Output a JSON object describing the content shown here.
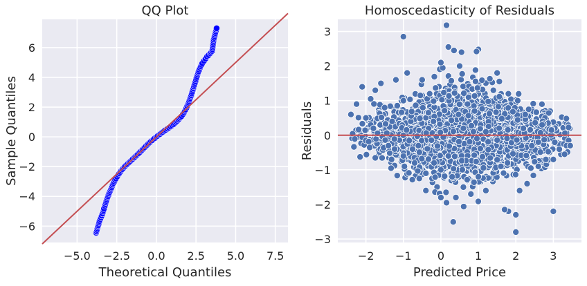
{
  "chart_data": [
    {
      "type": "scatter",
      "title": "QQ Plot",
      "xlabel": "Theoretical Quantiles",
      "ylabel": "Sample Quantiles",
      "xlim": [
        -7.2,
        8.3
      ],
      "ylim": [
        -7.1,
        7.9
      ],
      "xticks": [
        -5.0,
        -2.5,
        0.0,
        2.5,
        5.0,
        7.5
      ],
      "xtick_labels": [
        "−5.0",
        "−2.5",
        "0.0",
        "2.5",
        "5.0",
        "7.5"
      ],
      "yticks": [
        -6,
        -4,
        -2,
        0,
        2,
        4,
        6
      ],
      "ytick_labels": [
        "−6",
        "−4",
        "−2",
        "0",
        "2",
        "4",
        "6"
      ],
      "grid": true,
      "reference_line": {
        "slope": 1,
        "intercept": 0
      },
      "series": [
        {
          "points": [
            [
              -3.8,
              -6.45
            ],
            [
              -3.58,
              -5.65
            ],
            [
              -3.45,
              -5.3
            ],
            [
              -3.35,
              -5.02
            ],
            [
              -3.3,
              -4.82
            ],
            [
              -3.25,
              -4.65
            ],
            [
              -3.18,
              -4.4
            ],
            [
              -3.12,
              -4.2
            ],
            [
              -3.05,
              -4.0
            ],
            [
              -2.98,
              -3.8
            ],
            [
              -2.9,
              -3.6
            ],
            [
              -2.82,
              -3.4
            ],
            [
              -2.75,
              -3.2
            ],
            [
              -2.65,
              -3.0
            ],
            [
              -2.55,
              -2.8
            ],
            [
              -2.4,
              -2.55
            ],
            [
              -2.2,
              -2.25
            ],
            [
              -2.0,
              -2.0
            ],
            [
              -1.7,
              -1.7
            ],
            [
              -1.4,
              -1.4
            ],
            [
              -1.1,
              -1.1
            ],
            [
              -0.8,
              -0.78
            ],
            [
              -0.5,
              -0.45
            ],
            [
              -0.25,
              -0.22
            ],
            [
              0.0,
              0.0
            ],
            [
              0.25,
              0.2
            ],
            [
              0.5,
              0.4
            ],
            [
              0.8,
              0.62
            ],
            [
              1.1,
              0.85
            ],
            [
              1.4,
              1.15
            ],
            [
              1.6,
              1.4
            ],
            [
              1.75,
              1.65
            ],
            [
              1.9,
              1.95
            ],
            [
              2.0,
              2.2
            ],
            [
              2.1,
              2.5
            ],
            [
              2.2,
              2.8
            ],
            [
              2.3,
              3.15
            ],
            [
              2.4,
              3.5
            ],
            [
              2.5,
              3.85
            ],
            [
              2.6,
              4.2
            ],
            [
              2.7,
              4.5
            ],
            [
              2.8,
              4.75
            ],
            [
              2.9,
              4.95
            ],
            [
              3.0,
              5.1
            ],
            [
              3.1,
              5.25
            ],
            [
              3.2,
              5.4
            ],
            [
              3.3,
              5.5
            ],
            [
              3.4,
              5.62
            ],
            [
              3.52,
              5.78
            ],
            [
              3.62,
              6.55
            ],
            [
              3.8,
              7.3
            ]
          ]
        }
      ]
    },
    {
      "type": "scatter",
      "title": "Homoscedasticity of Residuals",
      "xlabel": "Predicted Price",
      "ylabel": "Residuals",
      "xlim": [
        -2.75,
        3.75
      ],
      "ylim": [
        -3.1,
        3.35
      ],
      "xticks": [
        -2,
        -1,
        0,
        1,
        2,
        3
      ],
      "xtick_labels": [
        "−2",
        "−1",
        "0",
        "1",
        "2",
        "3"
      ],
      "yticks": [
        -3,
        -2,
        -1,
        0,
        1,
        2,
        3
      ],
      "ytick_labels": [
        "−3",
        "−2",
        "−1",
        "0",
        "1",
        "2",
        "3"
      ],
      "grid": true,
      "reference_line": {
        "y": 0
      },
      "series": [
        {
          "points": [
            [
              0.15,
              3.18
            ],
            [
              -1.0,
              2.85
            ],
            [
              1.0,
              2.48
            ],
            [
              0.95,
              2.42
            ],
            [
              0.35,
              2.45
            ],
            [
              0.55,
              2.4
            ],
            [
              0.2,
              2.55
            ],
            [
              -0.9,
              1.8
            ],
            [
              -1.2,
              1.6
            ],
            [
              -1.6,
              1.5
            ],
            [
              -1.75,
              1.3
            ],
            [
              -2.1,
              1.4
            ],
            [
              -2.4,
              0.6
            ],
            [
              -2.25,
              0.9
            ],
            [
              2.05,
              1.0
            ],
            [
              2.25,
              0.6
            ],
            [
              2.7,
              0.3
            ],
            [
              2.95,
              0.15
            ],
            [
              3.35,
              -0.3
            ],
            [
              3.45,
              -0.3
            ],
            [
              3.3,
              -0.55
            ],
            [
              3.0,
              -0.7
            ],
            [
              2.8,
              -0.7
            ],
            [
              2.6,
              -0.9
            ],
            [
              2.4,
              -0.95
            ],
            [
              2.3,
              -1.4
            ],
            [
              2.1,
              -1.6
            ],
            [
              3.0,
              -2.2
            ],
            [
              2.0,
              -2.3
            ],
            [
              1.8,
              -2.2
            ],
            [
              1.7,
              -2.15
            ],
            [
              2.0,
              -2.8
            ],
            [
              1.2,
              -1.6
            ],
            [
              0.8,
              -1.7
            ],
            [
              0.6,
              -1.5
            ],
            [
              0.4,
              -1.8
            ],
            [
              0.15,
              -1.95
            ],
            [
              0.0,
              -1.8
            ],
            [
              -0.4,
              -1.1
            ],
            [
              -0.7,
              -0.8
            ],
            [
              -1.0,
              -0.6
            ],
            [
              -1.4,
              -0.3
            ],
            [
              -1.8,
              0.2
            ],
            [
              -2.0,
              0.5
            ],
            [
              -1.5,
              0.8
            ],
            [
              -1.0,
              1.0
            ],
            [
              -0.5,
              1.6
            ],
            [
              0.0,
              2.1
            ],
            [
              0.5,
              2.0
            ],
            [
              1.5,
              1.8
            ],
            [
              1.8,
              1.2
            ],
            [
              2.2,
              0.2
            ],
            [
              2.6,
              -0.2
            ],
            [
              1.0,
              -1.2
            ],
            [
              0.2,
              -0.6
            ],
            [
              -0.2,
              0.4
            ],
            [
              0.6,
              0.2
            ],
            [
              1.2,
              0.1
            ],
            [
              -0.6,
              -0.3
            ],
            [
              0.9,
              0.7
            ],
            [
              -1.3,
              0.4
            ],
            [
              1.6,
              -0.9
            ],
            [
              -0.3,
              1.2
            ],
            [
              0.3,
              -1.2
            ],
            [
              1.4,
              1.3
            ]
          ],
          "cloud_center": [
            0.6,
            0.0
          ],
          "cloud_spread": [
            1.2,
            0.65
          ]
        }
      ]
    }
  ]
}
